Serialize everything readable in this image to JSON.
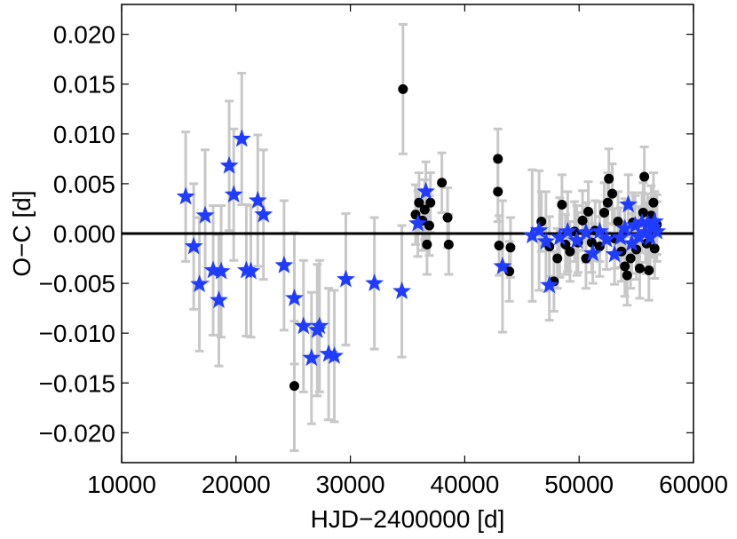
{
  "chart_data": {
    "type": "scatter",
    "xlabel": "HJD−2400000 [d]",
    "ylabel": "O−C [d]",
    "xlim": [
      10000,
      60000
    ],
    "ylim": [
      -0.023,
      0.023
    ],
    "xticks": [
      10000,
      20000,
      30000,
      40000,
      50000,
      60000
    ],
    "xtick_labels": [
      "10000",
      "20000",
      "30000",
      "40000",
      "50000",
      "60000"
    ],
    "yticks": [
      -0.02,
      -0.015,
      -0.01,
      -0.005,
      0.0,
      0.005,
      0.01,
      0.015,
      0.02
    ],
    "ytick_labels": [
      "−0.020",
      "−0.015",
      "−0.010",
      "−0.005",
      "0.000",
      "0.005",
      "0.010",
      "0.015",
      "0.020"
    ],
    "grid": false,
    "zero_line": 0.0,
    "colors": {
      "stars": "#1f3cff",
      "dots": "#000000",
      "errorbars": "#c8c8c8",
      "zero_line": "#000000"
    },
    "series": [
      {
        "marker": "star",
        "points": [
          {
            "x": 15600,
            "y": 0.0037,
            "err": 0.0065
          },
          {
            "x": 16300,
            "y": -0.0013,
            "err": 0.0063
          },
          {
            "x": 16800,
            "y": -0.0051,
            "err": 0.0067
          },
          {
            "x": 17300,
            "y": 0.0018,
            "err": 0.0066
          },
          {
            "x": 18000,
            "y": -0.0037,
            "err": 0.0065
          },
          {
            "x": 18500,
            "y": -0.0067,
            "err": 0.0066
          },
          {
            "x": 18700,
            "y": -0.0038,
            "err": 0.0066
          },
          {
            "x": 19400,
            "y": 0.0068,
            "err": 0.0065
          },
          {
            "x": 19800,
            "y": 0.0039,
            "err": 0.0066
          },
          {
            "x": 20500,
            "y": 0.0095,
            "err": 0.0066
          },
          {
            "x": 20900,
            "y": -0.0037,
            "err": 0.0066
          },
          {
            "x": 21300,
            "y": -0.0038,
            "err": 0.0066
          },
          {
            "x": 21900,
            "y": 0.0033,
            "err": 0.0066
          },
          {
            "x": 22400,
            "y": 0.0019,
            "err": 0.0065
          },
          {
            "x": 24200,
            "y": -0.0032,
            "err": 0.0065
          },
          {
            "x": 25100,
            "y": -0.0065,
            "err": 0.0066
          },
          {
            "x": 25900,
            "y": -0.0093,
            "err": 0.0066
          },
          {
            "x": 26600,
            "y": -0.0125,
            "err": 0.0066
          },
          {
            "x": 27100,
            "y": -0.0097,
            "err": 0.0066
          },
          {
            "x": 27300,
            "y": -0.0093,
            "err": 0.0066
          },
          {
            "x": 28100,
            "y": -0.0121,
            "err": 0.0066
          },
          {
            "x": 28600,
            "y": -0.0123,
            "err": 0.0066
          },
          {
            "x": 29600,
            "y": -0.0046,
            "err": 0.0066
          },
          {
            "x": 32100,
            "y": -0.005,
            "err": 0.0066
          },
          {
            "x": 34500,
            "y": -0.0058,
            "err": 0.0066
          },
          {
            "x": 35900,
            "y": 0.001,
            "err": 0.0033
          },
          {
            "x": 36600,
            "y": 0.0042,
            "err": 0.003
          },
          {
            "x": 43300,
            "y": -0.0033,
            "err": 0.0066
          },
          {
            "x": 45900,
            "y": -0.0002,
            "err": 0.0066
          },
          {
            "x": 46500,
            "y": 0.0003,
            "err": 0.006
          },
          {
            "x": 47100,
            "y": -0.0008,
            "err": 0.005
          },
          {
            "x": 47400,
            "y": -0.0052,
            "err": 0.0035
          },
          {
            "x": 48300,
            "y": -0.0004,
            "err": 0.004
          },
          {
            "x": 49000,
            "y": 0.0002,
            "err": 0.004
          },
          {
            "x": 49800,
            "y": -0.0007,
            "err": 0.0035
          },
          {
            "x": 50600,
            "y": 0.0001,
            "err": 0.003
          },
          {
            "x": 51200,
            "y": -0.002,
            "err": 0.003
          },
          {
            "x": 51800,
            "y": 0.0002,
            "err": 0.003
          },
          {
            "x": 52400,
            "y": -0.0006,
            "err": 0.003
          },
          {
            "x": 53100,
            "y": -0.0021,
            "err": 0.003
          },
          {
            "x": 53600,
            "y": -0.0004,
            "err": 0.003
          },
          {
            "x": 54000,
            "y": 0.0005,
            "err": 0.003
          },
          {
            "x": 54300,
            "y": 0.0029,
            "err": 0.003
          },
          {
            "x": 54600,
            "y": -0.001,
            "err": 0.003
          },
          {
            "x": 54900,
            "y": 0.0008,
            "err": 0.003
          },
          {
            "x": 55200,
            "y": -0.0003,
            "err": 0.003
          },
          {
            "x": 55500,
            "y": 0.0011,
            "err": 0.003
          },
          {
            "x": 55800,
            "y": 0.0001,
            "err": 0.003
          },
          {
            "x": 56000,
            "y": 0.001,
            "err": 0.003
          },
          {
            "x": 56200,
            "y": -0.0004,
            "err": 0.003
          },
          {
            "x": 56400,
            "y": 0.0006,
            "err": 0.003
          },
          {
            "x": 56600,
            "y": 0.0012,
            "err": 0.003
          },
          {
            "x": 56800,
            "y": 0.0002,
            "err": 0.003
          }
        ]
      },
      {
        "marker": "dot",
        "points": [
          {
            "x": 25100,
            "y": -0.0153,
            "err": 0.0065
          },
          {
            "x": 34600,
            "y": 0.0145,
            "err": 0.0065
          },
          {
            "x": 35700,
            "y": 0.0019,
            "err": 0.003
          },
          {
            "x": 36000,
            "y": 0.0031,
            "err": 0.003
          },
          {
            "x": 36300,
            "y": 0.0013,
            "err": 0.003
          },
          {
            "x": 36500,
            "y": 0.0024,
            "err": 0.003
          },
          {
            "x": 36700,
            "y": -0.0011,
            "err": 0.003
          },
          {
            "x": 36900,
            "y": 0.0008,
            "err": 0.003
          },
          {
            "x": 37000,
            "y": 0.0031,
            "err": 0.003
          },
          {
            "x": 38000,
            "y": 0.0051,
            "err": 0.003
          },
          {
            "x": 38500,
            "y": 0.0016,
            "err": 0.003
          },
          {
            "x": 38600,
            "y": -0.0011,
            "err": 0.003
          },
          {
            "x": 42900,
            "y": 0.0075,
            "err": 0.003
          },
          {
            "x": 42900,
            "y": 0.0042,
            "err": 0.003
          },
          {
            "x": 43000,
            "y": -0.0012,
            "err": 0.003
          },
          {
            "x": 43900,
            "y": -0.0038,
            "err": 0.003
          },
          {
            "x": 44000,
            "y": -0.0014,
            "err": 0.003
          },
          {
            "x": 46700,
            "y": 0.0012,
            "err": 0.003
          },
          {
            "x": 47400,
            "y": -0.0013,
            "err": 0.003
          },
          {
            "x": 47800,
            "y": -0.0048,
            "err": 0.003
          },
          {
            "x": 48100,
            "y": -0.0025,
            "err": 0.003
          },
          {
            "x": 48500,
            "y": 0.0029,
            "err": 0.003
          },
          {
            "x": 48800,
            "y": -0.0011,
            "err": 0.003
          },
          {
            "x": 49200,
            "y": -0.0018,
            "err": 0.003
          },
          {
            "x": 49600,
            "y": 0.0002,
            "err": 0.003
          },
          {
            "x": 49900,
            "y": -0.0009,
            "err": 0.003
          },
          {
            "x": 50300,
            "y": 0.0013,
            "err": 0.003
          },
          {
            "x": 50600,
            "y": -0.0025,
            "err": 0.003
          },
          {
            "x": 50800,
            "y": 0.0022,
            "err": 0.003
          },
          {
            "x": 51100,
            "y": -0.0009,
            "err": 0.003
          },
          {
            "x": 51400,
            "y": 0.0003,
            "err": 0.003
          },
          {
            "x": 51800,
            "y": -0.0013,
            "err": 0.003
          },
          {
            "x": 52200,
            "y": 0.0021,
            "err": 0.003
          },
          {
            "x": 52500,
            "y": 0.0031,
            "err": 0.003
          },
          {
            "x": 52600,
            "y": 0.0055,
            "err": 0.003
          },
          {
            "x": 52900,
            "y": 0.004,
            "err": 0.003
          },
          {
            "x": 53100,
            "y": -0.0005,
            "err": 0.003
          },
          {
            "x": 53400,
            "y": 0.0012,
            "err": 0.003
          },
          {
            "x": 53700,
            "y": -0.0018,
            "err": 0.003
          },
          {
            "x": 54000,
            "y": -0.0033,
            "err": 0.003
          },
          {
            "x": 54200,
            "y": -0.0042,
            "err": 0.003
          },
          {
            "x": 54500,
            "y": -0.0025,
            "err": 0.003
          },
          {
            "x": 54700,
            "y": 0.0011,
            "err": 0.003
          },
          {
            "x": 55000,
            "y": -0.0016,
            "err": 0.003
          },
          {
            "x": 55300,
            "y": -0.0035,
            "err": 0.003
          },
          {
            "x": 55600,
            "y": 0.0021,
            "err": 0.003
          },
          {
            "x": 55700,
            "y": 0.0057,
            "err": 0.003
          },
          {
            "x": 55900,
            "y": -0.001,
            "err": 0.003
          },
          {
            "x": 56100,
            "y": -0.0037,
            "err": 0.003
          },
          {
            "x": 56300,
            "y": 0.0018,
            "err": 0.003
          },
          {
            "x": 56500,
            "y": 0.0031,
            "err": 0.003
          },
          {
            "x": 56600,
            "y": -0.0015,
            "err": 0.003
          },
          {
            "x": 56800,
            "y": 0.0009,
            "err": 0.003
          }
        ]
      }
    ]
  }
}
